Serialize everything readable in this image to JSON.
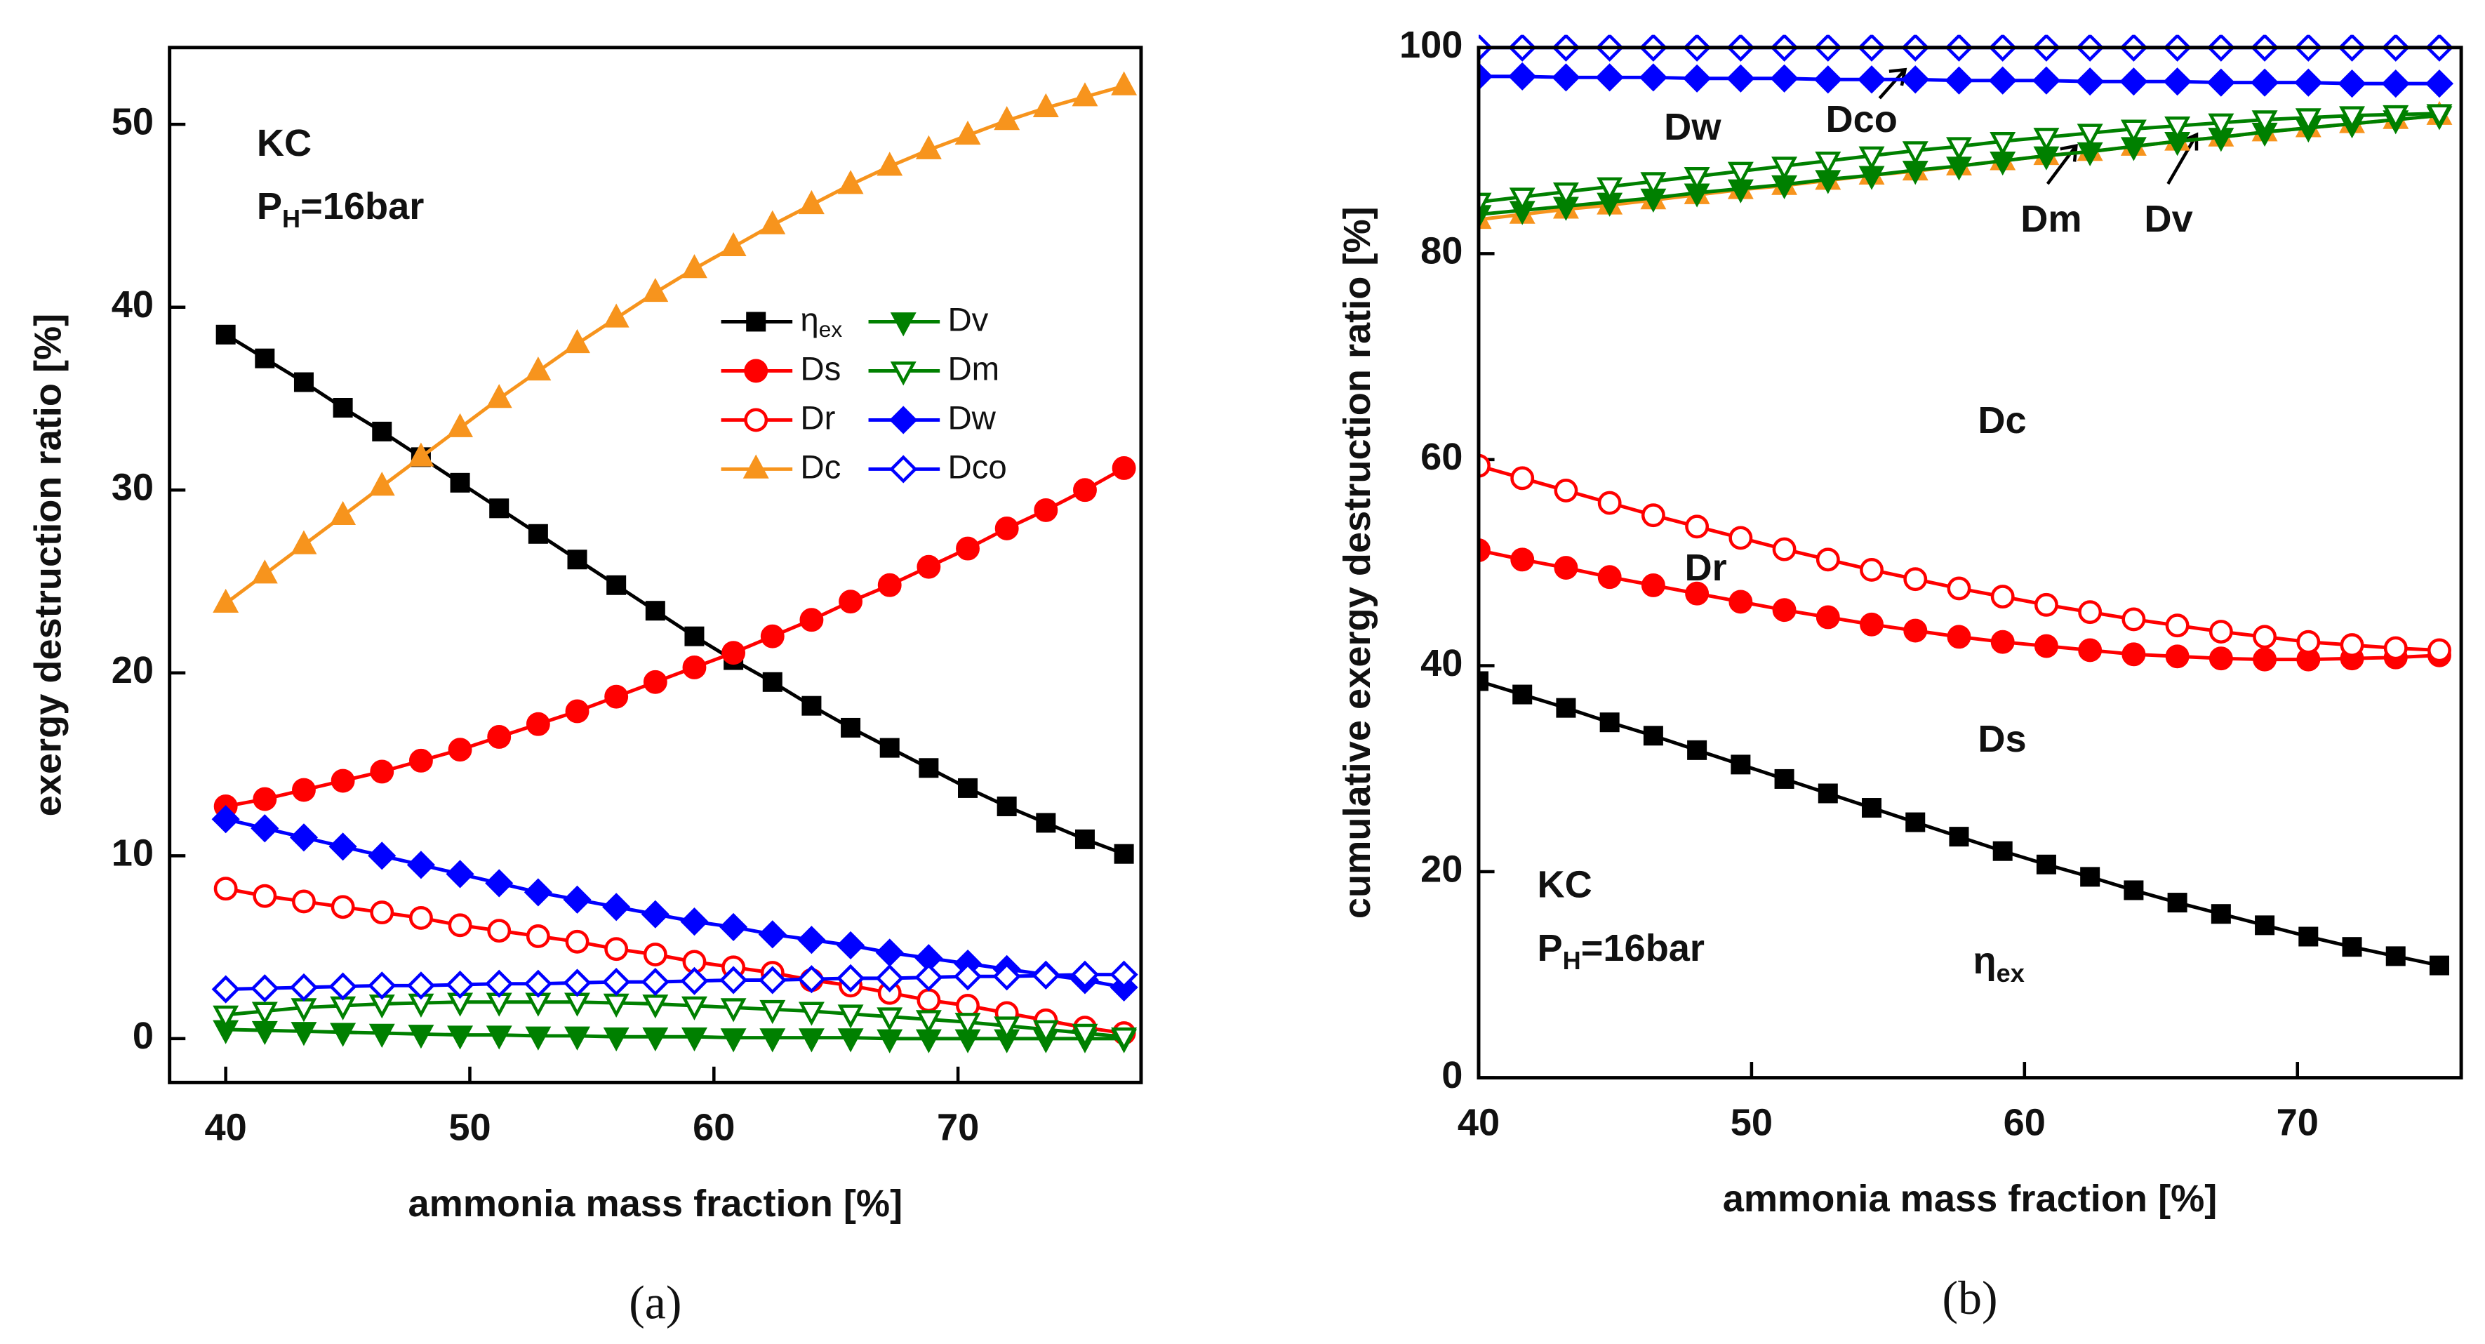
{
  "chart_data": [
    {
      "type": "line",
      "caption": "(a)",
      "xlabel": "ammonia mass fraction [%]",
      "ylabel": "exergy destruction ratio [%]",
      "xlim": [
        37.7,
        77.5
      ],
      "xticks": [
        40,
        50,
        60,
        70
      ],
      "ylim": [
        -2.4,
        54.2
      ],
      "yticks": [
        0,
        10,
        20,
        30,
        40,
        50
      ],
      "x": [
        40,
        41.6,
        43.2,
        44.8,
        46.4,
        48,
        49.6,
        51.2,
        52.8,
        54.4,
        56,
        57.6,
        59.2,
        60.8,
        62.4,
        64,
        65.6,
        67.2,
        68.8,
        70.4,
        72,
        73.6,
        75.2,
        76.8
      ],
      "series": [
        {
          "name": "η",
          "name_sub": "ex",
          "color": "#000000",
          "marker": "square",
          "filled": true,
          "values": [
            38.5,
            37.2,
            35.9,
            34.5,
            33.2,
            31.8,
            30.4,
            29.0,
            27.6,
            26.2,
            24.8,
            23.4,
            22.0,
            20.7,
            19.5,
            18.2,
            17.0,
            15.9,
            14.8,
            13.7,
            12.7,
            11.8,
            10.9,
            10.1
          ]
        },
        {
          "name": "Ds",
          "color": "#ff0000",
          "marker": "circle",
          "filled": true,
          "values": [
            12.7,
            13.1,
            13.6,
            14.1,
            14.6,
            15.2,
            15.8,
            16.5,
            17.2,
            17.9,
            18.7,
            19.5,
            20.3,
            21.1,
            22.0,
            22.9,
            23.9,
            24.8,
            25.8,
            26.8,
            27.9,
            28.9,
            30.0,
            31.2
          ]
        },
        {
          "name": "Dr",
          "color": "#ff0000",
          "marker": "circle",
          "filled": false,
          "values": [
            8.2,
            7.8,
            7.5,
            7.2,
            6.9,
            6.6,
            6.2,
            5.9,
            5.6,
            5.3,
            4.9,
            4.6,
            4.2,
            3.9,
            3.6,
            3.2,
            2.9,
            2.5,
            2.1,
            1.8,
            1.4,
            1.0,
            0.6,
            0.3
          ]
        },
        {
          "name": "Dc",
          "color": "#f7941d",
          "marker": "triangle-up",
          "filled": true,
          "values": [
            23.8,
            25.4,
            27.0,
            28.6,
            30.2,
            31.8,
            33.4,
            35.0,
            36.5,
            38.0,
            39.4,
            40.8,
            42.1,
            43.3,
            44.5,
            45.6,
            46.7,
            47.7,
            48.6,
            49.4,
            50.2,
            50.9,
            51.5,
            52.1
          ]
        },
        {
          "name": "Dv",
          "color": "#008000",
          "marker": "triangle-down",
          "filled": true,
          "values": [
            0.5,
            0.45,
            0.4,
            0.35,
            0.3,
            0.25,
            0.2,
            0.2,
            0.15,
            0.15,
            0.1,
            0.1,
            0.1,
            0.05,
            0.05,
            0.05,
            0.05,
            0,
            0,
            0,
            0,
            0,
            0,
            0
          ]
        },
        {
          "name": "Dm",
          "color": "#008000",
          "marker": "triangle-down",
          "filled": false,
          "values": [
            1.3,
            1.5,
            1.7,
            1.8,
            1.9,
            1.95,
            2.0,
            2.0,
            2.0,
            2.0,
            1.95,
            1.9,
            1.8,
            1.7,
            1.6,
            1.5,
            1.35,
            1.2,
            1.05,
            0.9,
            0.7,
            0.5,
            0.3,
            0.1
          ]
        },
        {
          "name": "Dw",
          "color": "#0000ff",
          "marker": "diamond",
          "filled": true,
          "values": [
            12.0,
            11.5,
            11.0,
            10.5,
            10.0,
            9.5,
            9.0,
            8.5,
            8.0,
            7.6,
            7.2,
            6.8,
            6.4,
            6.1,
            5.7,
            5.4,
            5.1,
            4.7,
            4.4,
            4.1,
            3.8,
            3.5,
            3.2,
            2.8
          ]
        },
        {
          "name": "Dco",
          "color": "#0000ff",
          "marker": "diamond",
          "filled": false,
          "values": [
            2.7,
            2.75,
            2.8,
            2.85,
            2.9,
            2.9,
            2.95,
            3.0,
            3.0,
            3.05,
            3.1,
            3.1,
            3.15,
            3.2,
            3.2,
            3.25,
            3.3,
            3.3,
            3.35,
            3.4,
            3.4,
            3.45,
            3.5,
            3.5
          ]
        }
      ],
      "annotations": [
        {
          "text": "KC"
        },
        {
          "text": "P",
          "sub": "H",
          "tail": "=16bar"
        }
      ]
    },
    {
      "type": "line",
      "caption": "(b)",
      "xlabel": "ammonia mass fraction [%]",
      "ylabel": "cumulative exergy destruction ratio [%]",
      "xlim": [
        40,
        76
      ],
      "xticks": [
        40,
        50,
        60,
        70
      ],
      "ylim": [
        0,
        100
      ],
      "yticks": [
        0,
        20,
        40,
        60,
        80,
        100
      ],
      "x": [
        40,
        41.6,
        43.2,
        44.8,
        46.4,
        48,
        49.6,
        51.2,
        52.8,
        54.4,
        56,
        57.6,
        59.2,
        60.8,
        62.4,
        64,
        65.6,
        67.2,
        68.8,
        70.4,
        72,
        73.6,
        75.2
      ],
      "series": [
        {
          "color": "#000000",
          "marker": "square",
          "filled": true,
          "values": [
            38.5,
            37.2,
            35.9,
            34.5,
            33.2,
            31.8,
            30.4,
            29.0,
            27.6,
            26.2,
            24.8,
            23.4,
            22.0,
            20.7,
            19.5,
            18.2,
            17.0,
            15.9,
            14.8,
            13.7,
            12.7,
            11.8,
            10.9
          ]
        },
        {
          "color": "#ff0000",
          "marker": "circle",
          "filled": true,
          "values": [
            51.2,
            50.3,
            49.5,
            48.6,
            47.8,
            47.0,
            46.2,
            45.4,
            44.7,
            44.0,
            43.4,
            42.8,
            42.3,
            41.9,
            41.5,
            41.1,
            40.9,
            40.7,
            40.6,
            40.6,
            40.7,
            40.8,
            41.0
          ]
        },
        {
          "color": "#ff0000",
          "marker": "circle",
          "filled": false,
          "values": [
            59.4,
            58.2,
            57.0,
            55.8,
            54.6,
            53.5,
            52.4,
            51.3,
            50.3,
            49.3,
            48.4,
            47.5,
            46.7,
            45.9,
            45.2,
            44.5,
            43.9,
            43.3,
            42.8,
            42.3,
            42.0,
            41.7,
            41.5
          ]
        },
        {
          "color": "#f7941d",
          "marker": "triangle-up",
          "filled": true,
          "values": [
            83.3,
            83.8,
            84.3,
            84.7,
            85.2,
            85.7,
            86.2,
            86.6,
            87.1,
            87.6,
            88.0,
            88.5,
            89.0,
            89.5,
            89.9,
            90.4,
            90.9,
            91.3,
            91.8,
            92.2,
            92.6,
            93.0,
            93.4
          ]
        },
        {
          "color": "#008000",
          "marker": "triangle-down",
          "filled": true,
          "values": [
            83.8,
            84.2,
            84.6,
            85.0,
            85.4,
            85.9,
            86.3,
            86.7,
            87.2,
            87.6,
            88.1,
            88.5,
            89.0,
            89.5,
            89.9,
            90.4,
            90.9,
            91.3,
            91.8,
            92.2,
            92.6,
            93.0,
            93.4
          ]
        },
        {
          "color": "#008000",
          "marker": "triangle-down",
          "filled": false,
          "values": [
            85.0,
            85.5,
            86.0,
            86.5,
            87.0,
            87.5,
            88.0,
            88.5,
            89.0,
            89.5,
            90.0,
            90.4,
            90.9,
            91.3,
            91.7,
            92.1,
            92.4,
            92.7,
            93.0,
            93.2,
            93.4,
            93.5,
            93.6
          ]
        },
        {
          "color": "#0000ff",
          "marker": "diamond",
          "filled": true,
          "values": [
            97.2,
            97.2,
            97.1,
            97.1,
            97.1,
            97.0,
            97.0,
            97.0,
            96.9,
            96.9,
            96.9,
            96.8,
            96.8,
            96.8,
            96.7,
            96.7,
            96.7,
            96.6,
            96.6,
            96.6,
            96.5,
            96.5,
            96.5
          ]
        },
        {
          "color": "#0000ff",
          "marker": "diamond",
          "filled": false,
          "values": [
            100,
            100,
            100,
            100,
            100,
            100,
            100,
            100,
            100,
            100,
            100,
            100,
            100,
            100,
            100,
            100,
            100,
            100,
            100,
            100,
            100,
            100,
            100
          ]
        }
      ],
      "annotations": [
        {
          "text": "Dw"
        },
        {
          "text": "Dco"
        },
        {
          "text": "Dm"
        },
        {
          "text": "Dv"
        },
        {
          "text": "Dc"
        },
        {
          "text": "Dr"
        },
        {
          "text": "Ds"
        },
        {
          "text": "η",
          "sub": "ex"
        },
        {
          "text": "KC"
        },
        {
          "text": "P",
          "sub": "H",
          "tail": "=16bar"
        }
      ]
    }
  ]
}
